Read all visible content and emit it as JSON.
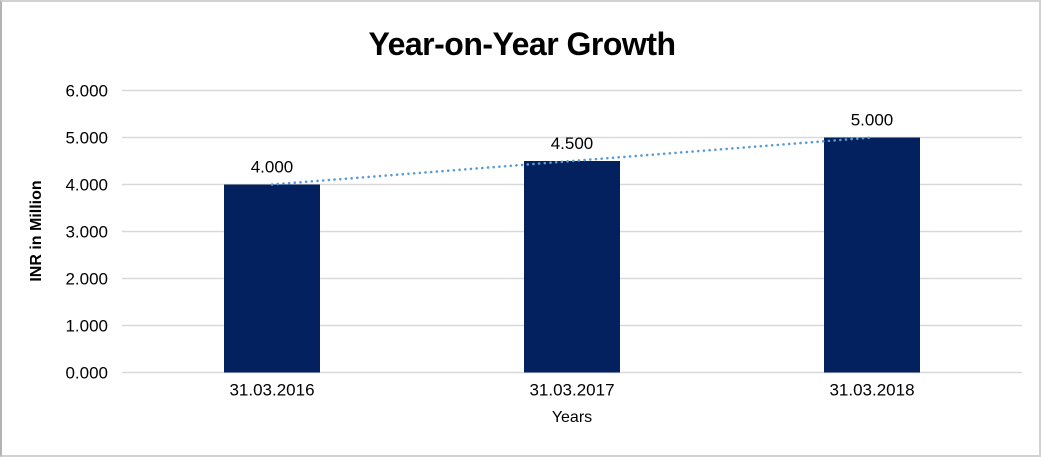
{
  "chart_data": {
    "type": "bar",
    "title": "Year-on-Year Growth",
    "xlabel": "Years",
    "ylabel": "INR in Million",
    "categories": [
      "31.03.2016",
      "31.03.2017",
      "31.03.2018"
    ],
    "series": [
      {
        "name": "Growth",
        "values": [
          4.0,
          4.5,
          5.0
        ],
        "value_labels": [
          "4.000",
          "4.500",
          "5.000"
        ]
      }
    ],
    "ylim": [
      0,
      6
    ],
    "ytick_step": 1,
    "ytick_labels": [
      "0.000",
      "1.000",
      "2.000",
      "3.000",
      "4.000",
      "5.000",
      "6.000"
    ],
    "grid": true,
    "legend_position": "none",
    "trendline": {
      "style": "dotted",
      "from_category": 0,
      "from_value": 4.0,
      "to_category": 2,
      "to_value": 5.0
    },
    "colors": {
      "bar": "#03215e",
      "trendline": "#5b9bd5",
      "gridline": "#d9d9d9",
      "axis_line": "#d9d9d9",
      "text": "#000000",
      "background": "#ffffff",
      "border": "#d2d2d2"
    }
  }
}
